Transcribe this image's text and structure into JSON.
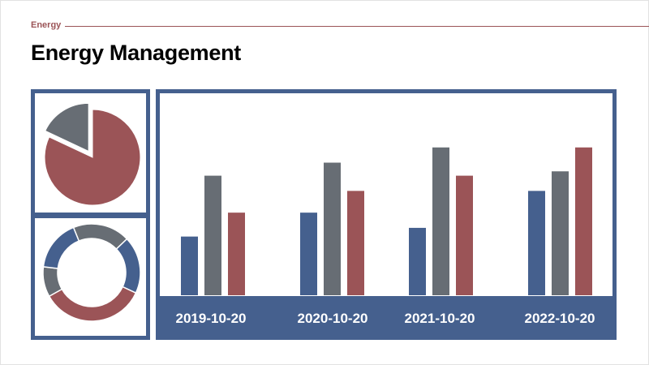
{
  "header": {
    "section": "Energy",
    "title": "Energy Management"
  },
  "colors": {
    "blue": "#45608e",
    "gray": "#676d74",
    "red": "#9b5457",
    "accent_line": "#9b5457"
  },
  "chart_data": [
    {
      "type": "pie",
      "title": "",
      "slices": [
        {
          "value": 82,
          "color": "#9b5457"
        },
        {
          "value": 18,
          "color": "#676d74",
          "exploded": true
        }
      ]
    },
    {
      "type": "pie",
      "subtype": "donut",
      "title": "",
      "slices": [
        {
          "value": 19,
          "color": "#676d74"
        },
        {
          "value": 19,
          "color": "#45608e"
        },
        {
          "value": 35,
          "color": "#9b5457"
        },
        {
          "value": 10,
          "color": "#676d74"
        },
        {
          "value": 17,
          "color": "#45608e"
        }
      ]
    },
    {
      "type": "bar",
      "title": "",
      "xlabel": "",
      "ylabel": "",
      "categories": [
        "2019-10-20",
        "2020-10-20",
        "2021-10-20",
        "2022-10-20"
      ],
      "ylim": [
        0,
        110
      ],
      "grid": false,
      "series": [
        {
          "color": "#45608e",
          "values": [
            27,
            38,
            31,
            48
          ]
        },
        {
          "color": "#676d74",
          "values": [
            55,
            61,
            68,
            57
          ]
        },
        {
          "color": "#9b5457",
          "values": [
            38,
            48,
            55,
            68
          ]
        }
      ]
    }
  ]
}
